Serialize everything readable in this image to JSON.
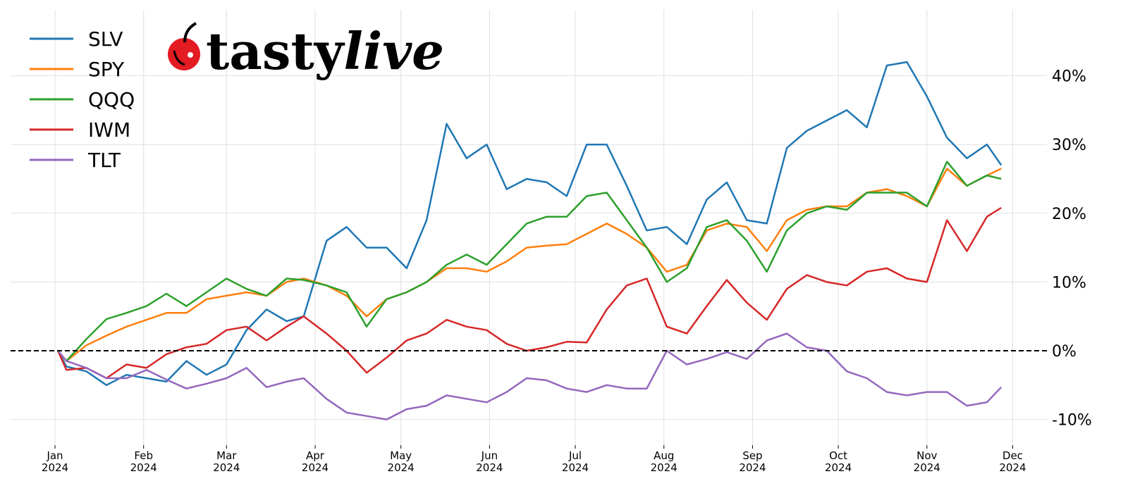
{
  "brand": {
    "logo_text": "tastylive",
    "logo_part1": "tasty",
    "logo_part2": "live",
    "logo_color": "#e31b23"
  },
  "chart_data": {
    "type": "line",
    "title": "",
    "xlabel": "",
    "ylabel": "",
    "y_unit": "%",
    "ylim": [
      -14,
      50
    ],
    "xlim": [
      "2023-12-17",
      "2024-12-13"
    ],
    "grid": true,
    "legend_placement": "top-left",
    "zero_line": {
      "value": 0,
      "style": "dashed",
      "color": "#000000"
    },
    "y_ticks": [
      {
        "v": 40,
        "label": "40%"
      },
      {
        "v": 30,
        "label": "30%"
      },
      {
        "v": 20,
        "label": "20%"
      },
      {
        "v": 10,
        "label": "10%"
      },
      {
        "v": 0,
        "label": "0%"
      },
      {
        "v": -10,
        "label": "-10%"
      }
    ],
    "x_ticks": [
      {
        "date": "2024-01-01",
        "m": "Jan",
        "y": "2024"
      },
      {
        "date": "2024-02-01",
        "m": "Feb",
        "y": "2024"
      },
      {
        "date": "2024-03-01",
        "m": "Mar",
        "y": "2024"
      },
      {
        "date": "2024-04-01",
        "m": "Apr",
        "y": "2024"
      },
      {
        "date": "2024-05-01",
        "m": "May",
        "y": "2024"
      },
      {
        "date": "2024-06-01",
        "m": "Jun",
        "y": "2024"
      },
      {
        "date": "2024-07-01",
        "m": "Jul",
        "y": "2024"
      },
      {
        "date": "2024-08-01",
        "m": "Aug",
        "y": "2024"
      },
      {
        "date": "2024-09-01",
        "m": "Sep",
        "y": "2024"
      },
      {
        "date": "2024-10-01",
        "m": "Oct",
        "y": "2024"
      },
      {
        "date": "2024-11-01",
        "m": "Nov",
        "y": "2024"
      },
      {
        "date": "2024-12-01",
        "m": "Dec",
        "y": "2024"
      }
    ],
    "x": [
      "2024-01-02",
      "2024-01-05",
      "2024-01-12",
      "2024-01-19",
      "2024-01-26",
      "2024-02-02",
      "2024-02-09",
      "2024-02-16",
      "2024-02-23",
      "2024-03-01",
      "2024-03-08",
      "2024-03-15",
      "2024-03-22",
      "2024-03-28",
      "2024-04-05",
      "2024-04-12",
      "2024-04-19",
      "2024-04-26",
      "2024-05-03",
      "2024-05-10",
      "2024-05-17",
      "2024-05-24",
      "2024-05-31",
      "2024-06-07",
      "2024-06-14",
      "2024-06-21",
      "2024-06-28",
      "2024-07-05",
      "2024-07-12",
      "2024-07-19",
      "2024-07-26",
      "2024-08-02",
      "2024-08-09",
      "2024-08-16",
      "2024-08-23",
      "2024-08-30",
      "2024-09-06",
      "2024-09-13",
      "2024-09-20",
      "2024-09-27",
      "2024-10-04",
      "2024-10-11",
      "2024-10-18",
      "2024-10-25",
      "2024-11-01",
      "2024-11-08",
      "2024-11-15",
      "2024-11-22",
      "2024-11-27"
    ],
    "series": [
      {
        "name": "SLV",
        "color": "#1f77b4",
        "values": [
          0,
          -2.3,
          -3,
          -5,
          -3.5,
          -4,
          -4.5,
          -1.5,
          -3.5,
          -2,
          3,
          6,
          4.3,
          5,
          16,
          18,
          15,
          15,
          12,
          19,
          33,
          28,
          30,
          23.5,
          25,
          24.5,
          22.5,
          30,
          30,
          24,
          17.5,
          18,
          15.5,
          22,
          24.5,
          19,
          18.5,
          29.5,
          32,
          33.5,
          35,
          32.5,
          41.5,
          42,
          37,
          31,
          28,
          30,
          27
        ]
      },
      {
        "name": "SPY",
        "color": "#ff7f0e",
        "values": [
          0,
          -1.5,
          0.8,
          2.2,
          3.5,
          4.5,
          5.5,
          5.5,
          7.5,
          8,
          8.5,
          8,
          10,
          10.5,
          9.5,
          8,
          5,
          7.5,
          8.5,
          10,
          12,
          12,
          11.5,
          13,
          15,
          15.3,
          15.5,
          17,
          18.5,
          17,
          15,
          11.5,
          12.5,
          17.5,
          18.5,
          18,
          14.5,
          19,
          20.5,
          21,
          21,
          23,
          23.5,
          22.5,
          21,
          26.5,
          24,
          25.5,
          26.5
        ]
      },
      {
        "name": "QQQ",
        "color": "#2ca02c",
        "values": [
          0,
          -1.5,
          1.7,
          4.6,
          5.5,
          6.5,
          8.3,
          6.5,
          8.5,
          10.5,
          9,
          8,
          10.5,
          10.3,
          9.5,
          8.5,
          3.5,
          7.5,
          8.5,
          10,
          12.5,
          14,
          12.5,
          15.5,
          18.5,
          19.5,
          19.5,
          22.5,
          23,
          19,
          15,
          10,
          12,
          18,
          19,
          16,
          11.5,
          17.5,
          20,
          21,
          20.5,
          23,
          23,
          23,
          21,
          27.5,
          24,
          25.5,
          25
        ]
      },
      {
        "name": "IWM",
        "color": "#d62728",
        "values": [
          0,
          -2.8,
          -2.5,
          -4,
          -2,
          -2.5,
          -0.5,
          0.5,
          1,
          3,
          3.5,
          1.5,
          3.5,
          5,
          2.5,
          0,
          -3.2,
          -1,
          1.5,
          2.5,
          4.5,
          3.5,
          3,
          1,
          0,
          0.5,
          1.3,
          1.2,
          6,
          9.5,
          10.5,
          3.5,
          2.5,
          6.5,
          10.3,
          7,
          4.5,
          9,
          11,
          10,
          9.5,
          11.5,
          12,
          10.5,
          10,
          19,
          14.5,
          19.5,
          20.8
        ]
      },
      {
        "name": "TLT",
        "color": "#9467bd",
        "values": [
          0,
          -1.5,
          -2.5,
          -4,
          -4,
          -2.8,
          -4.2,
          -5.5,
          -4.8,
          -4,
          -2.5,
          -5.3,
          -4.5,
          -4,
          -7,
          -9,
          -9.5,
          -10,
          -8.5,
          -8,
          -6.5,
          -7,
          -7.5,
          -6,
          -4,
          -4.3,
          -5.5,
          -6,
          -5,
          -5.5,
          -5.5,
          0,
          -2,
          -1.2,
          -0.2,
          -1.2,
          1.5,
          2.5,
          0.5,
          0,
          -3,
          -4,
          -6,
          -6.5,
          -6,
          -6,
          -8,
          -7.5,
          -5.3
        ]
      }
    ]
  }
}
